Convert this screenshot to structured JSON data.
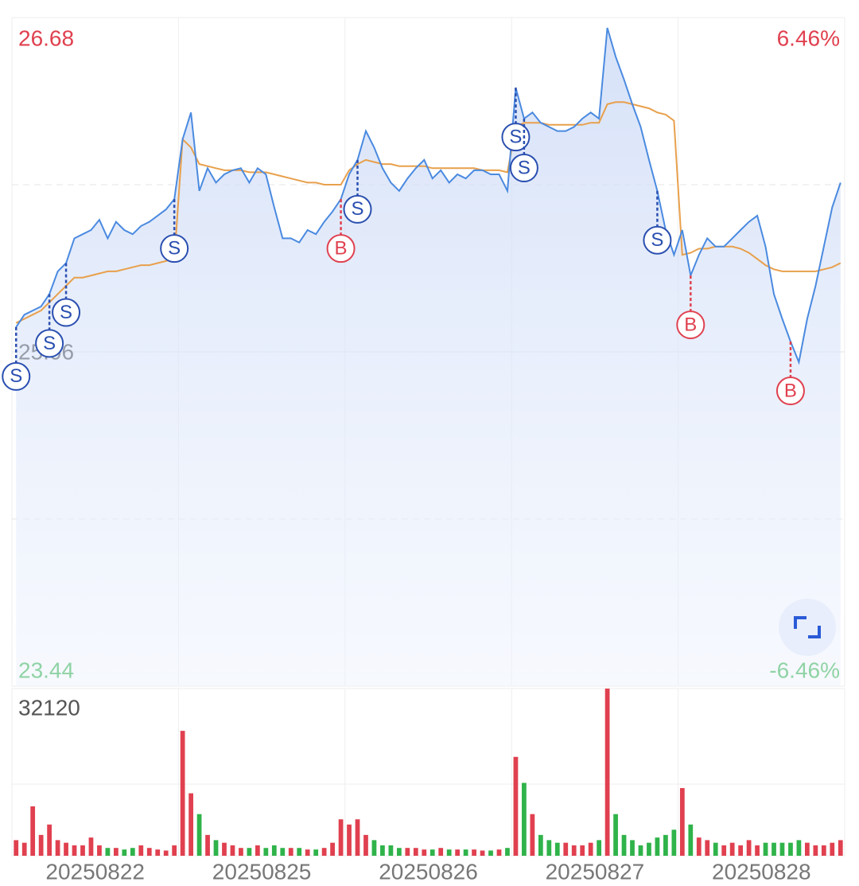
{
  "chart_data": {
    "type": "line",
    "ylim": [
      23.44,
      26.68
    ],
    "yticks": [
      23.44,
      25.06,
      26.68
    ],
    "y2lim": [
      -6.46,
      6.46
    ],
    "y2ticks": [
      {
        "value": -6.46,
        "label": "-6.46%"
      },
      {
        "value": 6.46,
        "label": "6.46%"
      }
    ],
    "volume_ylim": [
      0,
      32120
    ],
    "volume_yticks": [
      32120
    ],
    "colors": {
      "price": "#4a8ae0",
      "avg": "#e8a04c",
      "up": "#e0404f",
      "down": "#2fb34a",
      "sell": "#2a4fb0",
      "buy": "#e0404f"
    },
    "days": [
      {
        "date": "20250822",
        "price": [
          25.18,
          25.24,
          25.26,
          25.28,
          25.34,
          25.45,
          25.49,
          25.61,
          25.63,
          25.65,
          25.7,
          25.61,
          25.69,
          25.65,
          25.63,
          25.67,
          25.69,
          25.72,
          25.75,
          25.8
        ],
        "avg": [
          25.2,
          25.22,
          25.24,
          25.26,
          25.3,
          25.34,
          25.38,
          25.42,
          25.42,
          25.43,
          25.44,
          25.45,
          25.45,
          25.46,
          25.47,
          25.48,
          25.48,
          25.49,
          25.5,
          25.51
        ],
        "volume": [
          3000,
          2500,
          9500,
          4000,
          6000,
          3000,
          2500,
          2000,
          2000,
          3500,
          2000,
          1500,
          1500,
          1200,
          1500,
          2000,
          1500,
          1200,
          1000,
          2000
        ],
        "trades": [
          {
            "side": "S",
            "at": 0
          },
          {
            "side": "S",
            "at": 4
          },
          {
            "side": "S",
            "at": 6
          },
          {
            "side": "S",
            "at": 19
          }
        ]
      },
      {
        "date": "20250825",
        "price": [
          26.09,
          26.22,
          25.84,
          25.95,
          25.88,
          25.92,
          25.94,
          25.95,
          25.88,
          25.95,
          25.92,
          25.76,
          25.61,
          25.61,
          25.59,
          25.65,
          25.63,
          25.69,
          25.74,
          25.8
        ],
        "avg": [
          26.09,
          26.05,
          25.97,
          25.96,
          25.95,
          25.94,
          25.94,
          25.94,
          25.93,
          25.93,
          25.93,
          25.92,
          25.91,
          25.9,
          25.89,
          25.88,
          25.88,
          25.87,
          25.87,
          25.87
        ],
        "volume": [
          24000,
          12000,
          8000,
          4000,
          3000,
          2500,
          2000,
          1500,
          1500,
          2000,
          1500,
          2000,
          1500,
          1500,
          1500,
          1200,
          1200,
          1500,
          2500,
          7000
        ],
        "trades": [
          {
            "side": "B",
            "at": 19
          }
        ]
      },
      {
        "date": "20250826",
        "price": [
          25.92,
          25.99,
          26.13,
          26.05,
          25.95,
          25.88,
          25.84,
          25.9,
          25.95,
          25.99,
          25.9,
          25.94,
          25.88,
          25.92,
          25.9,
          25.94,
          25.94,
          25.92,
          25.92,
          25.84
        ],
        "avg": [
          25.94,
          25.97,
          25.99,
          25.98,
          25.97,
          25.97,
          25.96,
          25.96,
          25.96,
          25.96,
          25.95,
          25.95,
          25.95,
          25.95,
          25.95,
          25.95,
          25.94,
          25.94,
          25.94,
          25.93
        ],
        "volume": [
          6000,
          7000,
          4000,
          3000,
          2000,
          2000,
          1500,
          1500,
          1500,
          1200,
          1200,
          1500,
          1200,
          1200,
          1200,
          1200,
          1000,
          1000,
          1200,
          1500
        ],
        "trades": [
          {
            "side": "S",
            "at": 1
          }
        ]
      },
      {
        "date": "20250827",
        "price": [
          26.34,
          26.19,
          26.22,
          26.17,
          26.15,
          26.13,
          26.13,
          26.15,
          26.19,
          26.22,
          26.19,
          26.63,
          26.49,
          26.38,
          26.26,
          26.15,
          25.99,
          25.84,
          25.65,
          25.53
        ],
        "avg": [
          26.15,
          26.17,
          26.17,
          26.17,
          26.16,
          26.16,
          26.16,
          26.16,
          26.16,
          26.17,
          26.17,
          26.26,
          26.27,
          26.27,
          26.26,
          26.25,
          26.24,
          26.22,
          26.21,
          26.18
        ],
        "volume": [
          19000,
          14000,
          8000,
          4000,
          3000,
          2500,
          2500,
          2000,
          2000,
          2500,
          3000,
          32120,
          8000,
          4000,
          3000,
          2000,
          2500,
          3500,
          4000,
          5000
        ],
        "trades": [
          {
            "side": "S",
            "at": 0
          },
          {
            "side": "S",
            "at": 1
          },
          {
            "side": "S",
            "at": 17
          }
        ]
      },
      {
        "date": "20250828",
        "price": [
          25.65,
          25.43,
          25.53,
          25.61,
          25.57,
          25.57,
          25.61,
          25.65,
          25.69,
          25.72,
          25.57,
          25.34,
          25.22,
          25.11,
          25.01,
          25.22,
          25.38,
          25.57,
          25.76,
          25.88
        ],
        "avg": [
          25.53,
          25.54,
          25.56,
          25.56,
          25.57,
          25.57,
          25.57,
          25.56,
          25.54,
          25.51,
          25.48,
          25.46,
          25.45,
          25.45,
          25.45,
          25.45,
          25.45,
          25.46,
          25.47,
          25.49
        ],
        "volume": [
          13000,
          6000,
          3500,
          3000,
          2500,
          2000,
          2500,
          2000,
          3000,
          2000,
          2500,
          2500,
          2500,
          2500,
          3000,
          2500,
          2000,
          2000,
          2500,
          3000
        ],
        "trades": [
          {
            "side": "B",
            "at": 1
          },
          {
            "side": "B",
            "at": 13
          }
        ]
      }
    ]
  }
}
